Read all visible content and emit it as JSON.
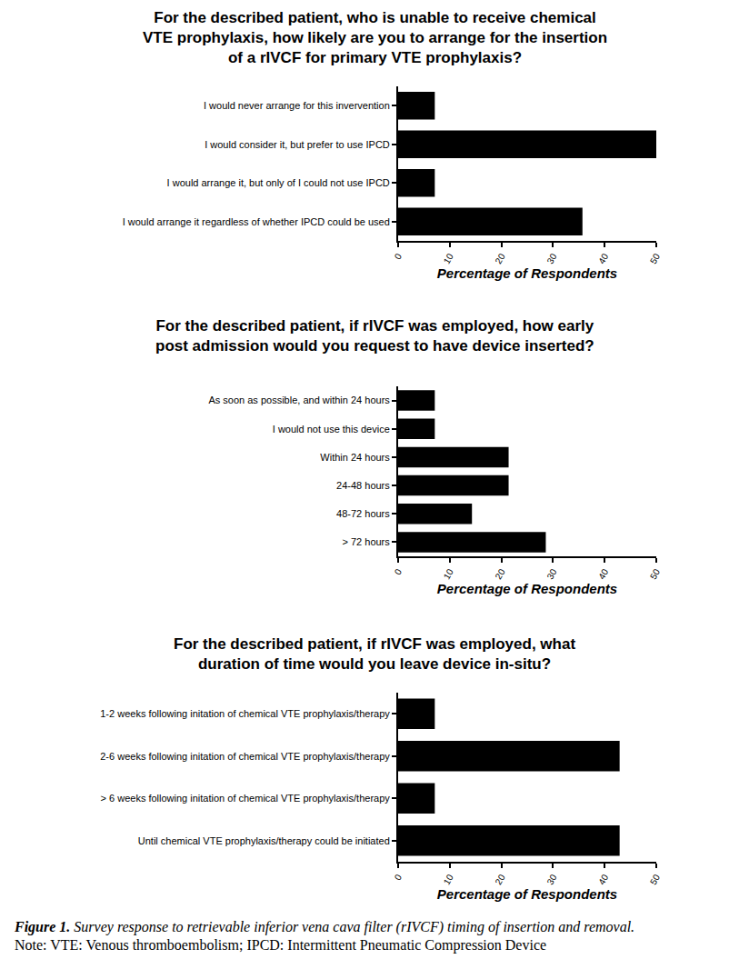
{
  "chart_data": [
    {
      "type": "bar",
      "orientation": "horizontal",
      "title": "For the described patient, who is unable to receive chemical\nVTE prophylaxis, how likely are you to arrange for the insertion\nof a rIVCF for primary VTE prophylaxis?",
      "categories": [
        "I would never arrange for this invervention",
        "I would consider it, but prefer to use IPCD",
        "I would arrange it, but only of I could not use IPCD",
        "I would arrange it regardless of whether IPCD could be used"
      ],
      "values": [
        7.1,
        50,
        7.1,
        35.7
      ],
      "color": "#000000",
      "xlabel": "Percentage of Respondents",
      "xlim": [
        0,
        50
      ],
      "xticks": [
        0,
        10,
        20,
        30,
        40,
        50
      ],
      "grid": false
    },
    {
      "type": "bar",
      "orientation": "horizontal",
      "title": "For the described patient, if rIVCF was employed, how early\npost admission would you request to have device inserted?",
      "categories": [
        "As soon as possible, and within 24 hours",
        "I would not use this device",
        "Within 24 hours",
        "24-48 hours",
        "48-72 hours",
        "> 72 hours"
      ],
      "values": [
        7.1,
        7.1,
        21.4,
        21.4,
        14.3,
        28.6
      ],
      "color": "#000000",
      "xlabel": "Percentage of Respondents",
      "xlim": [
        0,
        50
      ],
      "xticks": [
        0,
        10,
        20,
        30,
        40,
        50
      ],
      "grid": false
    },
    {
      "type": "bar",
      "orientation": "horizontal",
      "title": "For the described patient, if rIVCF was employed, what\nduration of time would you leave device in-situ?",
      "categories": [
        "1-2 weeks following initation of chemical VTE prophylaxis/therapy",
        "2-6 weeks following initation of chemical VTE prophylaxis/therapy",
        "> 6 weeks following initation of chemical VTE prophylaxis/therapy",
        "Until chemical VTE prophylaxis/therapy could be initiated"
      ],
      "values": [
        7.1,
        42.9,
        7.1,
        42.9
      ],
      "color": "#000000",
      "xlabel": "Percentage of Respondents",
      "xlim": [
        0,
        50
      ],
      "xticks": [
        0,
        10,
        20,
        30,
        40,
        50
      ],
      "grid": false
    }
  ],
  "caption": {
    "label": "Figure 1.",
    "text": "Survey response to retrievable inferior vena cava filter (rIVCF) timing of insertion and removal.",
    "note": "Note: VTE: Venous thromboembolism; IPCD: Intermittent Pneumatic Compression Device"
  }
}
